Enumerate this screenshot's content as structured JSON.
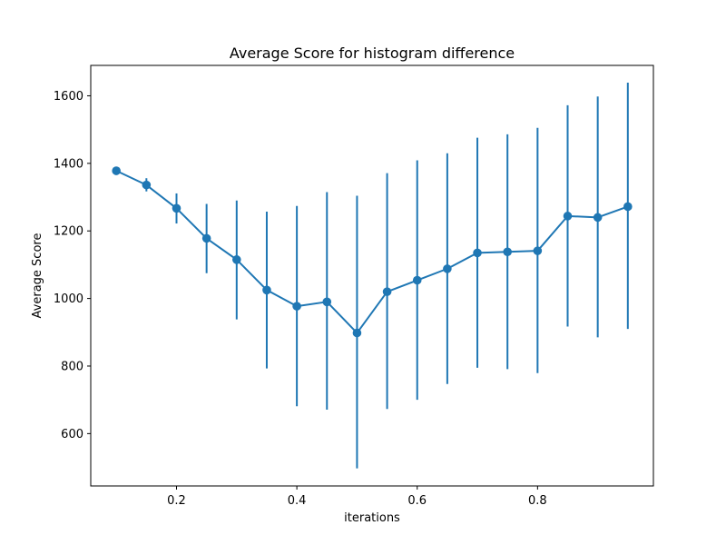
{
  "chart_data": {
    "type": "line",
    "title": "Average Score for histogram difference",
    "xlabel": "iterations",
    "ylabel": "Average Score",
    "xlim": [
      0.0575,
      0.9925
    ],
    "ylim": [
      445,
      1690
    ],
    "grid": false,
    "legend": "none",
    "x_ticks": [
      0.2,
      0.4,
      0.6,
      0.8
    ],
    "y_ticks": [
      600,
      800,
      1000,
      1200,
      1400,
      1600
    ],
    "x_tick_labels": [
      "0.2",
      "0.4",
      "0.6",
      "0.8"
    ],
    "y_tick_labels": [
      "600",
      "800",
      "1000",
      "1200",
      "1400",
      "1600"
    ],
    "color": "#1f77b4",
    "series": [
      {
        "x": [
          0.1,
          0.15,
          0.2,
          0.25,
          0.3,
          0.35,
          0.4,
          0.45,
          0.5,
          0.55,
          0.6,
          0.65,
          0.7,
          0.75,
          0.8,
          0.85,
          0.9,
          0.95
        ],
        "y": [
          1378,
          1336,
          1267,
          1178,
          1115,
          1025,
          977,
          990,
          898,
          1020,
          1054,
          1088,
          1135,
          1138,
          1141,
          1244,
          1240,
          1272
        ],
        "err_low": [
          1370,
          1317,
          1222,
          1075,
          938,
          793,
          681,
          671,
          497,
          673,
          700,
          747,
          795,
          791,
          779,
          917,
          885,
          910
        ],
        "err_high": [
          1387,
          1356,
          1311,
          1280,
          1290,
          1257,
          1274,
          1315,
          1304,
          1371,
          1409,
          1430,
          1476,
          1486,
          1505,
          1572,
          1598,
          1639
        ]
      }
    ]
  }
}
